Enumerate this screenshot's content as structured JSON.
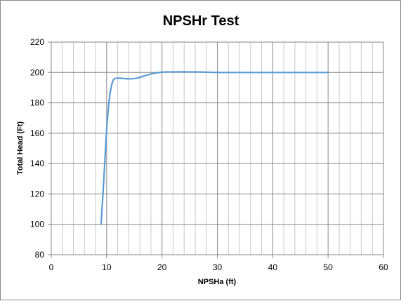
{
  "chart_data": {
    "type": "line",
    "title": "NPSHr Test",
    "xlabel": "NPSHa (ft)",
    "ylabel": "Total Head (Ft)",
    "xlim": [
      0,
      60
    ],
    "ylim": [
      80,
      220
    ],
    "x_ticks": [
      "0",
      "10",
      "20",
      "30",
      "40",
      "50",
      "60"
    ],
    "y_ticks": [
      "80",
      "100",
      "120",
      "140",
      "160",
      "180",
      "200",
      "220"
    ],
    "grid": {
      "x_major": 10,
      "x_minor": 2,
      "y_major": 20
    },
    "series": [
      {
        "color": "#5b9bd5",
        "points": [
          [
            9.0,
            100
          ],
          [
            9.5,
            130
          ],
          [
            10.0,
            162
          ],
          [
            10.5,
            183
          ],
          [
            11.0,
            193
          ],
          [
            11.5,
            196
          ],
          [
            12.5,
            196.2
          ],
          [
            14.0,
            195.8
          ],
          [
            15.5,
            196.3
          ],
          [
            17.0,
            198.0
          ],
          [
            18.5,
            199.4
          ],
          [
            20.0,
            200.2
          ],
          [
            22.0,
            200.4
          ],
          [
            25.0,
            200.4
          ],
          [
            28.0,
            200.2
          ],
          [
            30.0,
            200
          ],
          [
            35.0,
            200
          ],
          [
            40.0,
            200
          ],
          [
            45.0,
            200
          ],
          [
            50.0,
            200
          ]
        ]
      }
    ]
  }
}
